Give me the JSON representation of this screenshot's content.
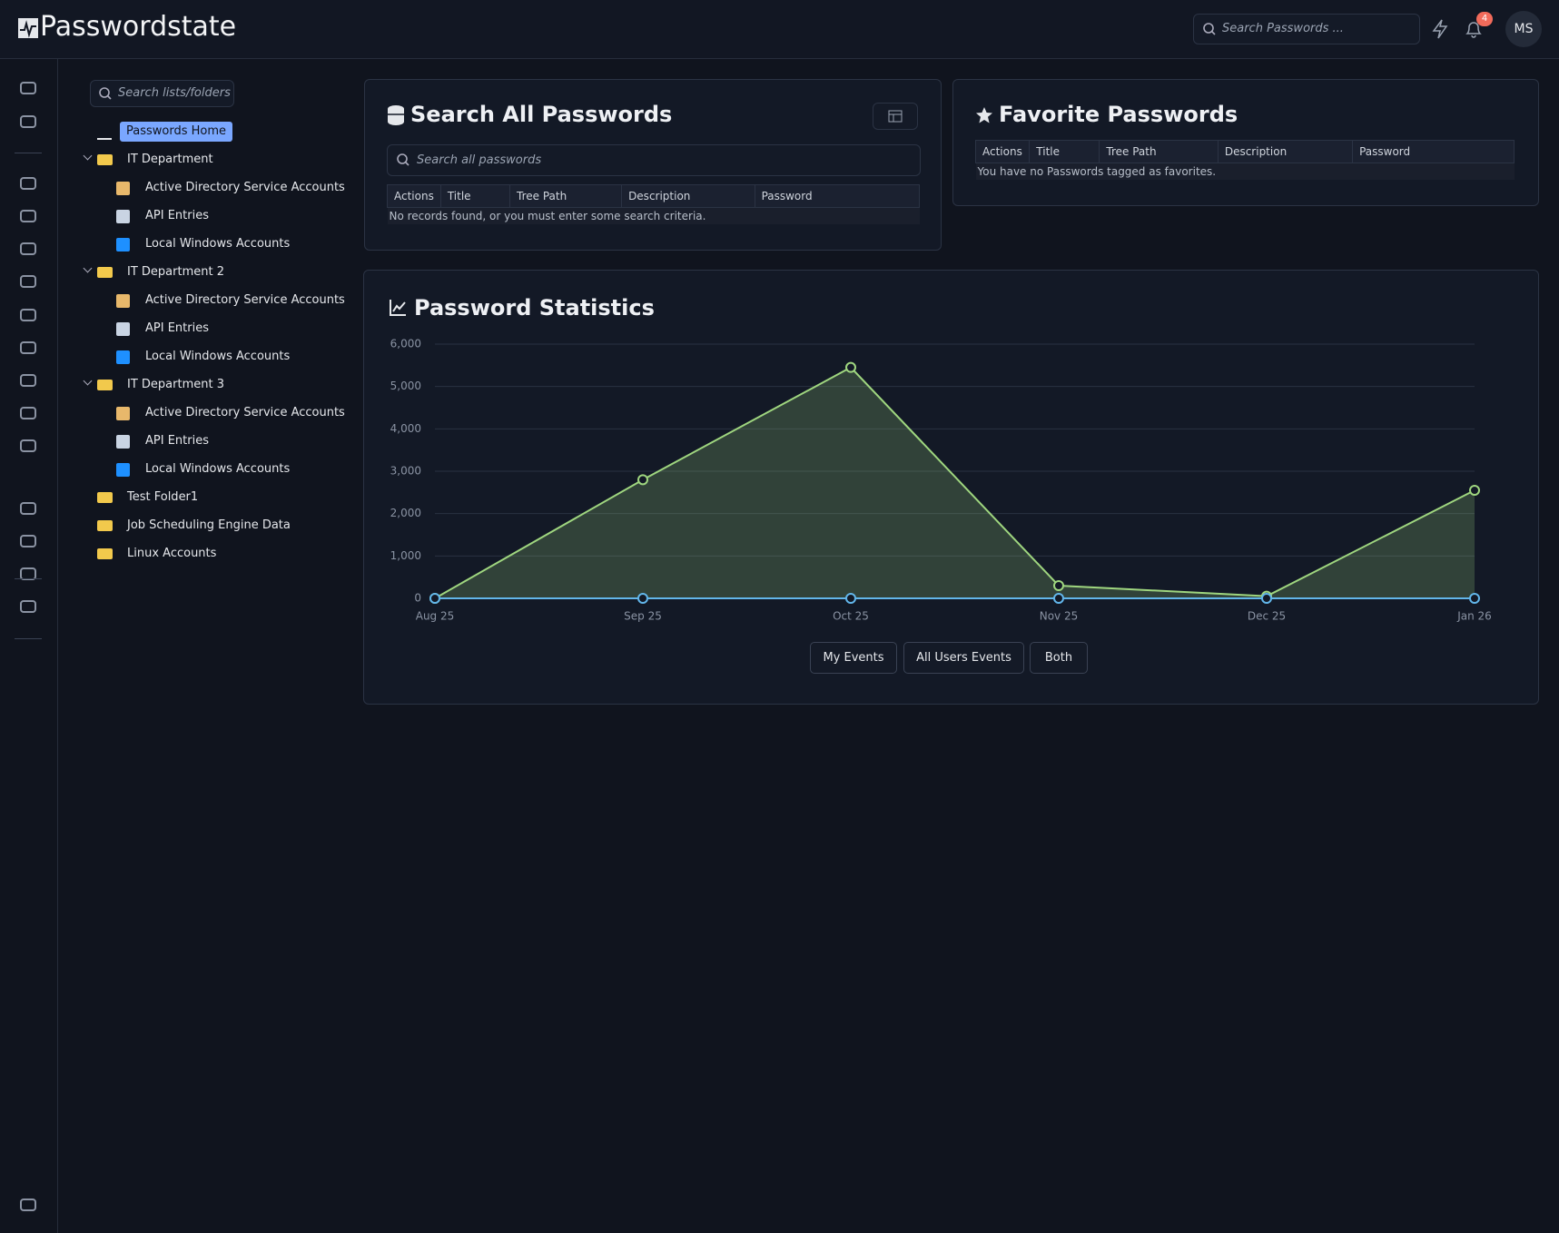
{
  "header": {
    "logo": "Passwordstate",
    "search_placeholder": "Search Passwords ...",
    "notification_count": 4,
    "user_initials": "MS"
  },
  "tree": {
    "search_placeholder": "Search lists/folders",
    "items": [
      {
        "label": "Passwords Home"
      },
      {
        "label": "IT Department",
        "children": [
          {
            "label": "Active Directory Service Accounts"
          },
          {
            "label": "API Entries"
          },
          {
            "label": "Local Windows Accounts"
          }
        ]
      },
      {
        "label": "IT Department 2",
        "children": [
          {
            "label": "Active Directory Service Accounts"
          },
          {
            "label": "API Entries"
          },
          {
            "label": "Local Windows Accounts"
          }
        ]
      },
      {
        "label": "IT Department 3",
        "children": [
          {
            "label": "Active Directory Service Accounts"
          },
          {
            "label": "API Entries"
          },
          {
            "label": "Local Windows Accounts"
          }
        ]
      },
      {
        "label": "Test Folder1"
      },
      {
        "label": "Job Scheduling Engine Data"
      },
      {
        "label": "Linux Accounts"
      }
    ]
  },
  "search_panel": {
    "title": "Search All Passwords",
    "search_placeholder": "Search all passwords",
    "columns": [
      "Actions",
      "Title",
      "Tree Path",
      "Description",
      "Password"
    ],
    "empty_message": "No records found, or you must enter some search criteria."
  },
  "favorites_panel": {
    "title": "Favorite Passwords",
    "columns": [
      "Actions",
      "Title",
      "Tree Path",
      "Description",
      "Password"
    ],
    "empty_message": "You have no Passwords tagged as favorites."
  },
  "stats_panel": {
    "title": "Password Statistics",
    "buttons": [
      "My Events",
      "All Users Events",
      "Both"
    ]
  },
  "chart_data": {
    "type": "line",
    "categories": [
      "Aug 25",
      "Sep 25",
      "Oct 25",
      "Nov 25",
      "Dec 25",
      "Jan 26"
    ],
    "series": [
      {
        "color": "#9fd67f",
        "values": [
          0,
          2800,
          5450,
          300,
          50,
          2550
        ]
      },
      {
        "color": "#62b6ea",
        "values": [
          0,
          0,
          0,
          0,
          0,
          0
        ]
      }
    ],
    "ylim": [
      0,
      6000
    ],
    "yticks": [
      0,
      {
        "value": 1000,
        "label": "1,000"
      },
      {
        "value": 2000,
        "label": "2,000"
      },
      {
        "value": 3000,
        "label": "3,000"
      },
      {
        "value": 4000,
        "label": "4,000"
      },
      {
        "value": 5000,
        "label": "5,000"
      },
      {
        "value": 6000,
        "label": "6,000"
      }
    ],
    "grid": true,
    "area": true
  }
}
